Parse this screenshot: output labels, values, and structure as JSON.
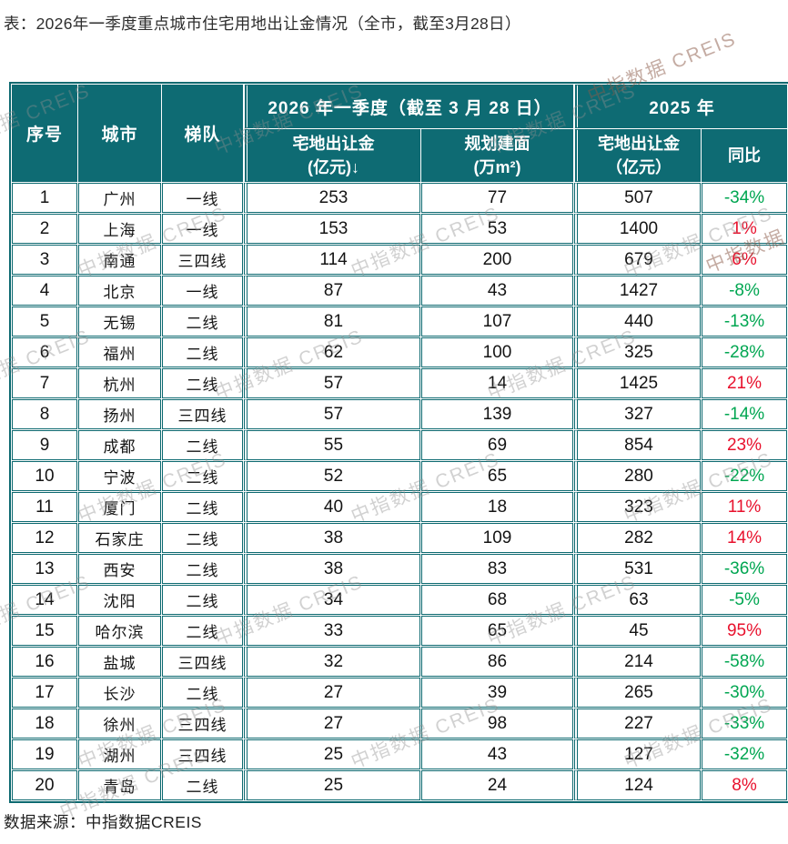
{
  "page": {
    "title": "表：2026年一季度重点城市住宅用地出让金情况（全市，截至3月28日）",
    "source": "数据来源：中指数据CREIS",
    "watermark_text": "中指数据 CREIS"
  },
  "colors": {
    "header_bg": "#0E6B73",
    "table_border": "#0C6970",
    "positive_red": "#E8112D",
    "negative_green": "#00A651"
  },
  "table": {
    "header": {
      "col_seq": "序号",
      "col_city": "城市",
      "col_tier": "梯队",
      "group_2026": "2026 年一季度（截至 3 月 28 日）",
      "group_2025": "2025 年",
      "col_fee_2026": "宅地出让金\n(亿元)↓",
      "col_planned_area": "规划建面\n(万m²)",
      "col_fee_2025": "宅地出让金\n（亿元）",
      "col_yoy": "同比"
    },
    "rows": [
      {
        "seq": "1",
        "city": "广州",
        "tier": "一线",
        "fee2026": "253",
        "area": "77",
        "fee2025": "507",
        "yoy": "-34%"
      },
      {
        "seq": "2",
        "city": "上海",
        "tier": "一线",
        "fee2026": "153",
        "area": "53",
        "fee2025": "1400",
        "yoy": "1%"
      },
      {
        "seq": "3",
        "city": "南通",
        "tier": "三四线",
        "fee2026": "114",
        "area": "200",
        "fee2025": "679",
        "yoy": "6%"
      },
      {
        "seq": "4",
        "city": "北京",
        "tier": "一线",
        "fee2026": "87",
        "area": "43",
        "fee2025": "1427",
        "yoy": "-8%"
      },
      {
        "seq": "5",
        "city": "无锡",
        "tier": "二线",
        "fee2026": "81",
        "area": "107",
        "fee2025": "440",
        "yoy": "-13%"
      },
      {
        "seq": "6",
        "city": "福州",
        "tier": "二线",
        "fee2026": "62",
        "area": "100",
        "fee2025": "325",
        "yoy": "-28%"
      },
      {
        "seq": "7",
        "city": "杭州",
        "tier": "二线",
        "fee2026": "57",
        "area": "14",
        "fee2025": "1425",
        "yoy": "21%"
      },
      {
        "seq": "8",
        "city": "扬州",
        "tier": "三四线",
        "fee2026": "57",
        "area": "139",
        "fee2025": "327",
        "yoy": "-14%"
      },
      {
        "seq": "9",
        "city": "成都",
        "tier": "二线",
        "fee2026": "55",
        "area": "69",
        "fee2025": "854",
        "yoy": "23%"
      },
      {
        "seq": "10",
        "city": "宁波",
        "tier": "二线",
        "fee2026": "52",
        "area": "65",
        "fee2025": "280",
        "yoy": "-22%"
      },
      {
        "seq": "11",
        "city": "厦门",
        "tier": "二线",
        "fee2026": "40",
        "area": "18",
        "fee2025": "323",
        "yoy": "11%"
      },
      {
        "seq": "12",
        "city": "石家庄",
        "tier": "二线",
        "fee2026": "38",
        "area": "109",
        "fee2025": "282",
        "yoy": "14%"
      },
      {
        "seq": "13",
        "city": "西安",
        "tier": "二线",
        "fee2026": "38",
        "area": "83",
        "fee2025": "531",
        "yoy": "-36%"
      },
      {
        "seq": "14",
        "city": "沈阳",
        "tier": "二线",
        "fee2026": "34",
        "area": "68",
        "fee2025": "63",
        "yoy": "-5%"
      },
      {
        "seq": "15",
        "city": "哈尔滨",
        "tier": "二线",
        "fee2026": "33",
        "area": "65",
        "fee2025": "45",
        "yoy": "95%"
      },
      {
        "seq": "16",
        "city": "盐城",
        "tier": "三四线",
        "fee2026": "32",
        "area": "86",
        "fee2025": "214",
        "yoy": "-58%"
      },
      {
        "seq": "17",
        "city": "长沙",
        "tier": "二线",
        "fee2026": "27",
        "area": "39",
        "fee2025": "265",
        "yoy": "-30%"
      },
      {
        "seq": "18",
        "city": "徐州",
        "tier": "三四线",
        "fee2026": "27",
        "area": "98",
        "fee2025": "227",
        "yoy": "-33%"
      },
      {
        "seq": "19",
        "city": "湖州",
        "tier": "三四线",
        "fee2026": "25",
        "area": "43",
        "fee2025": "127",
        "yoy": "-32%"
      },
      {
        "seq": "20",
        "city": "青岛",
        "tier": "二线",
        "fee2026": "25",
        "area": "24",
        "fee2025": "124",
        "yoy": "8%"
      }
    ]
  }
}
